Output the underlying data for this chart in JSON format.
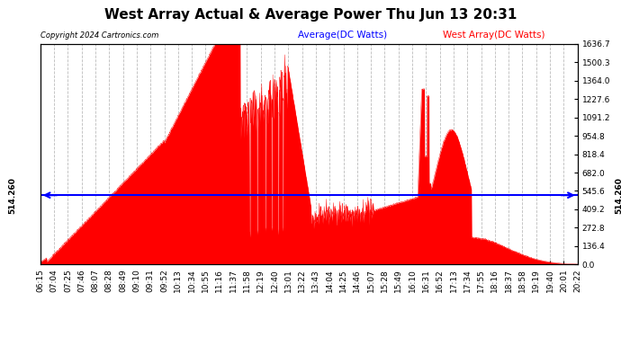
{
  "title": "West Array Actual & Average Power Thu Jun 13 20:31",
  "copyright": "Copyright 2024 Cartronics.com",
  "legend_avg": "Average(DC Watts)",
  "legend_west": "West Array(DC Watts)",
  "avg_value": 514.26,
  "ymax": 1636.7,
  "ymin": 0.0,
  "yticks_right": [
    0.0,
    136.4,
    272.8,
    409.2,
    545.6,
    682.0,
    818.4,
    954.8,
    1091.2,
    1227.6,
    1364.0,
    1500.3,
    1636.7
  ],
  "avg_line_color": "#0000ff",
  "fill_color": "#ff0000",
  "background_color": "#ffffff",
  "grid_color": "#bbbbbb",
  "title_fontsize": 11,
  "label_fontsize": 6.5,
  "xtick_labels": [
    "06:15",
    "07:04",
    "07:25",
    "07:46",
    "08:07",
    "08:28",
    "08:49",
    "09:10",
    "09:31",
    "09:52",
    "10:13",
    "10:34",
    "10:55",
    "11:16",
    "11:37",
    "11:58",
    "12:19",
    "12:40",
    "13:01",
    "13:22",
    "13:43",
    "14:04",
    "14:25",
    "14:46",
    "15:07",
    "15:28",
    "15:49",
    "16:10",
    "16:31",
    "16:52",
    "17:13",
    "17:34",
    "17:55",
    "18:16",
    "18:37",
    "18:58",
    "19:19",
    "19:40",
    "20:01",
    "20:22"
  ]
}
